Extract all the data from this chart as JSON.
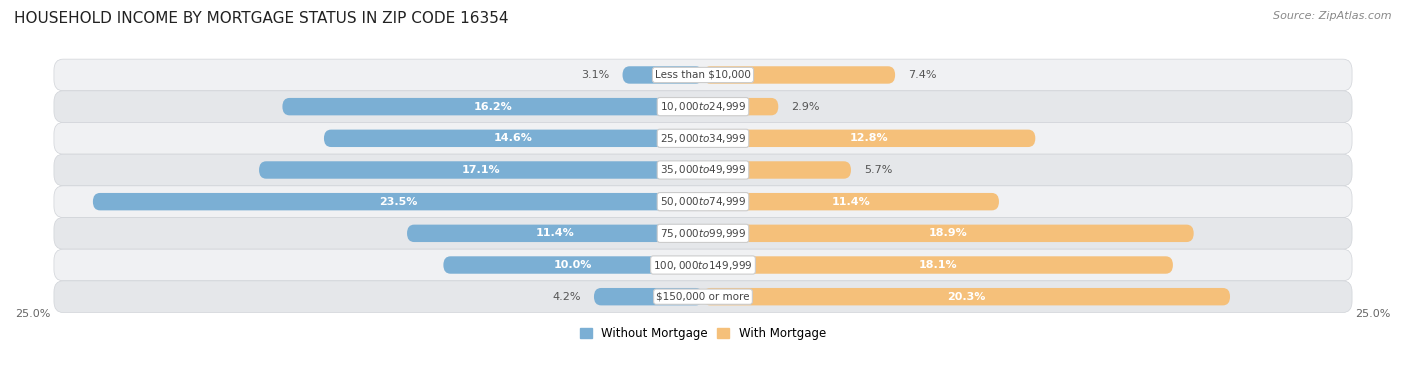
{
  "title": "HOUSEHOLD INCOME BY MORTGAGE STATUS IN ZIP CODE 16354",
  "source": "Source: ZipAtlas.com",
  "categories": [
    "Less than $10,000",
    "$10,000 to $24,999",
    "$25,000 to $34,999",
    "$35,000 to $49,999",
    "$50,000 to $74,999",
    "$75,000 to $99,999",
    "$100,000 to $149,999",
    "$150,000 or more"
  ],
  "without_mortgage": [
    3.1,
    16.2,
    14.6,
    17.1,
    23.5,
    11.4,
    10.0,
    4.2
  ],
  "with_mortgage": [
    7.4,
    2.9,
    12.8,
    5.7,
    11.4,
    18.9,
    18.1,
    20.3
  ],
  "color_without": "#7bafd4",
  "color_with": "#f5c07a",
  "row_bg_light": "#f2f3f5",
  "row_bg_dark": "#e8eaed",
  "axis_max": 25.0,
  "legend_label_without": "Without Mortgage",
  "legend_label_with": "With Mortgage",
  "title_fontsize": 11,
  "source_fontsize": 8,
  "label_fontsize": 8,
  "category_fontsize": 7.5,
  "axis_label_fontsize": 8
}
